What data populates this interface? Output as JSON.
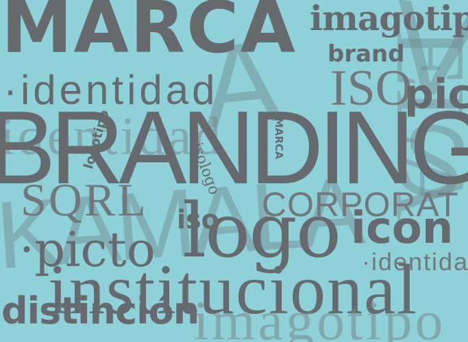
{
  "colors": {
    "background": "#8fd1d8",
    "text": "#666a6c",
    "ghost_text": "#78888b"
  },
  "words": {
    "marca_main": "MARCA",
    "imagotipo": "imagotipo",
    "brand": "brand",
    "identidad": "·identidad",
    "iso": "ISO",
    "picto_top": "picto",
    "branding": "BRANDING",
    "identidad_ghost": "identidad",
    "logotipo": "logotipo",
    "isologo": "isologo",
    "marca_vertical": "MARCA",
    "sqr": "SQRL",
    "iso_small": "iso",
    "corporat": "CORPORAT",
    "logo": "logo",
    "icon": "icon",
    "picto_mid": "·picto",
    "identidad_small": "·identidad",
    "institucional": "institucional",
    "distincion": "distinción",
    "imagotipo_ghost": "imagotipo",
    "ghost_v": "V",
    "ghost_a": "A",
    "ghost_letters": "KAMALA",
    "ghost_right": "ELA",
    "ghost_s": "S"
  }
}
